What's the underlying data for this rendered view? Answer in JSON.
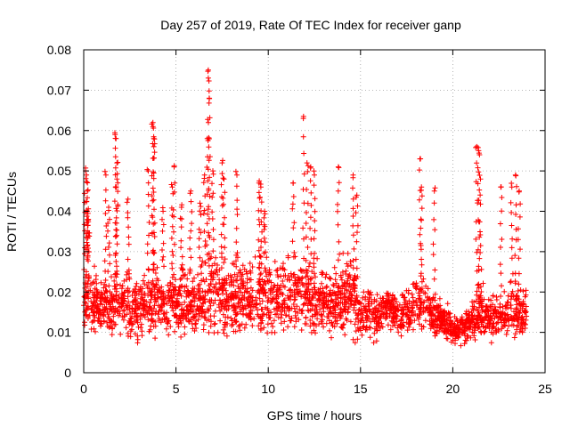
{
  "chart_data": {
    "type": "scatter",
    "title": "Day 257 of 2019, Rate Of TEC Index for receiver ganp",
    "xlabel": "GPS time / hours",
    "ylabel": "ROTI / TECUs",
    "xlim": [
      0,
      25
    ],
    "ylim": [
      0,
      0.08
    ],
    "xticks": [
      "0",
      "5",
      "10",
      "15",
      "20",
      "25"
    ],
    "yticks": [
      "0",
      "0.01",
      "0.02",
      "0.03",
      "0.04",
      "0.05",
      "0.06",
      "0.07",
      "0.08"
    ],
    "grid": true,
    "marker": "+",
    "color": "#ff0000",
    "series": [
      {
        "name": "ROTI",
        "x": [
          0.1,
          0.15,
          0.2,
          0.2,
          0.25,
          1.2,
          1.35,
          1.7,
          1.75,
          1.8,
          1.8,
          2.4,
          3.5,
          3.75,
          3.75,
          3.8,
          3.8,
          4.3,
          4.8,
          4.9,
          5.3,
          5.8,
          6.3,
          6.55,
          6.7,
          6.75,
          6.75,
          6.8,
          7.0,
          7.5,
          7.6,
          8.3,
          9.5,
          9.6,
          9.8,
          11.35,
          11.9,
          12.1,
          12.3,
          12.5,
          13.8,
          14.6,
          14.8,
          18.25,
          18.3,
          19.0,
          21.3,
          21.4,
          21.45,
          21.5,
          22.6,
          23.2,
          23.4,
          23.6
        ],
        "y": [
          0.05,
          0.049,
          0.045,
          0.04,
          0.038,
          0.049,
          0.041,
          0.059,
          0.058,
          0.052,
          0.048,
          0.043,
          0.05,
          0.062,
          0.061,
          0.058,
          0.056,
          0.04,
          0.046,
          0.051,
          0.041,
          0.045,
          0.042,
          0.049,
          0.058,
          0.075,
          0.073,
          0.068,
          0.05,
          0.052,
          0.048,
          0.049,
          0.047,
          0.046,
          0.04,
          0.047,
          0.063,
          0.052,
          0.051,
          0.049,
          0.051,
          0.049,
          0.044,
          0.053,
          0.046,
          0.045,
          0.056,
          0.055,
          0.054,
          0.048,
          0.046,
          0.046,
          0.049,
          0.045
        ]
      }
    ],
    "density_envelope": {
      "x": [
        0,
        0.5,
        1,
        1.5,
        2,
        2.5,
        3,
        3.5,
        4,
        4.5,
        5,
        5.5,
        6,
        6.5,
        7,
        7.5,
        8,
        8.5,
        9,
        9.5,
        10,
        10.5,
        11,
        11.5,
        12,
        12.5,
        13,
        13.5,
        14,
        14.5,
        15,
        15.5,
        16,
        16.5,
        17,
        17.5,
        18,
        18.5,
        19,
        19.5,
        20,
        20.5,
        21,
        21.5,
        22,
        22.5,
        23,
        23.5,
        24
      ],
      "low": [
        0.007,
        0.006,
        0.007,
        0.006,
        0.007,
        0.006,
        0.006,
        0.006,
        0.007,
        0.007,
        0.007,
        0.006,
        0.006,
        0.006,
        0.006,
        0.006,
        0.006,
        0.006,
        0.006,
        0.006,
        0.006,
        0.006,
        0.006,
        0.006,
        0.006,
        0.006,
        0.006,
        0.006,
        0.006,
        0.006,
        0.006,
        0.006,
        0.007,
        0.007,
        0.007,
        0.007,
        0.007,
        0.007,
        0.007,
        0.007,
        0.006,
        0.006,
        0.006,
        0.006,
        0.006,
        0.006,
        0.006,
        0.006,
        0.007
      ],
      "high": [
        0.03,
        0.026,
        0.024,
        0.025,
        0.024,
        0.024,
        0.025,
        0.026,
        0.026,
        0.025,
        0.025,
        0.026,
        0.026,
        0.028,
        0.03,
        0.029,
        0.027,
        0.028,
        0.028,
        0.029,
        0.029,
        0.029,
        0.028,
        0.028,
        0.028,
        0.027,
        0.026,
        0.026,
        0.028,
        0.03,
        0.02,
        0.02,
        0.021,
        0.022,
        0.02,
        0.02,
        0.024,
        0.025,
        0.02,
        0.018,
        0.015,
        0.015,
        0.017,
        0.022,
        0.02,
        0.021,
        0.022,
        0.022,
        0.02
      ]
    }
  }
}
